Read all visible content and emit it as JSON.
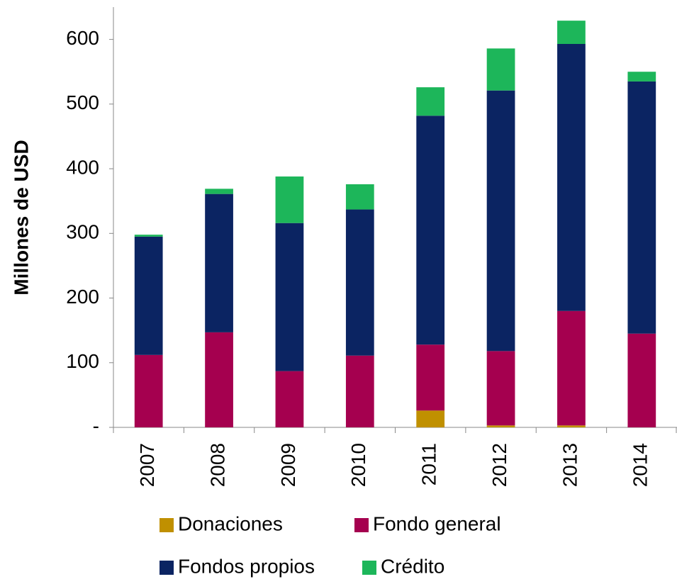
{
  "chart_data": {
    "type": "stacked_bar",
    "y_label": "Millones de USD",
    "categories": [
      "2007",
      "2008",
      "2009",
      "2010",
      "2011",
      "2012",
      "2013",
      "2014"
    ],
    "series": [
      {
        "name": "Donaciones",
        "color": "#c09000",
        "values": [
          0,
          0,
          0,
          0,
          26,
          3,
          3,
          0
        ]
      },
      {
        "name": "Fondo general",
        "color": "#a5004f",
        "values": [
          112,
          147,
          87,
          111,
          102,
          115,
          177,
          145
        ]
      },
      {
        "name": "Fondos propios",
        "color": "#0b2462",
        "values": [
          183,
          214,
          229,
          226,
          354,
          403,
          413,
          390
        ]
      },
      {
        "name": "Crédito",
        "color": "#1db65a",
        "values": [
          3,
          8,
          72,
          39,
          44,
          65,
          36,
          15
        ]
      }
    ],
    "ylim": [
      0,
      650
    ],
    "yticks": [
      {
        "value": 0,
        "label": "-"
      },
      100,
      200,
      300,
      400,
      500,
      600
    ]
  }
}
